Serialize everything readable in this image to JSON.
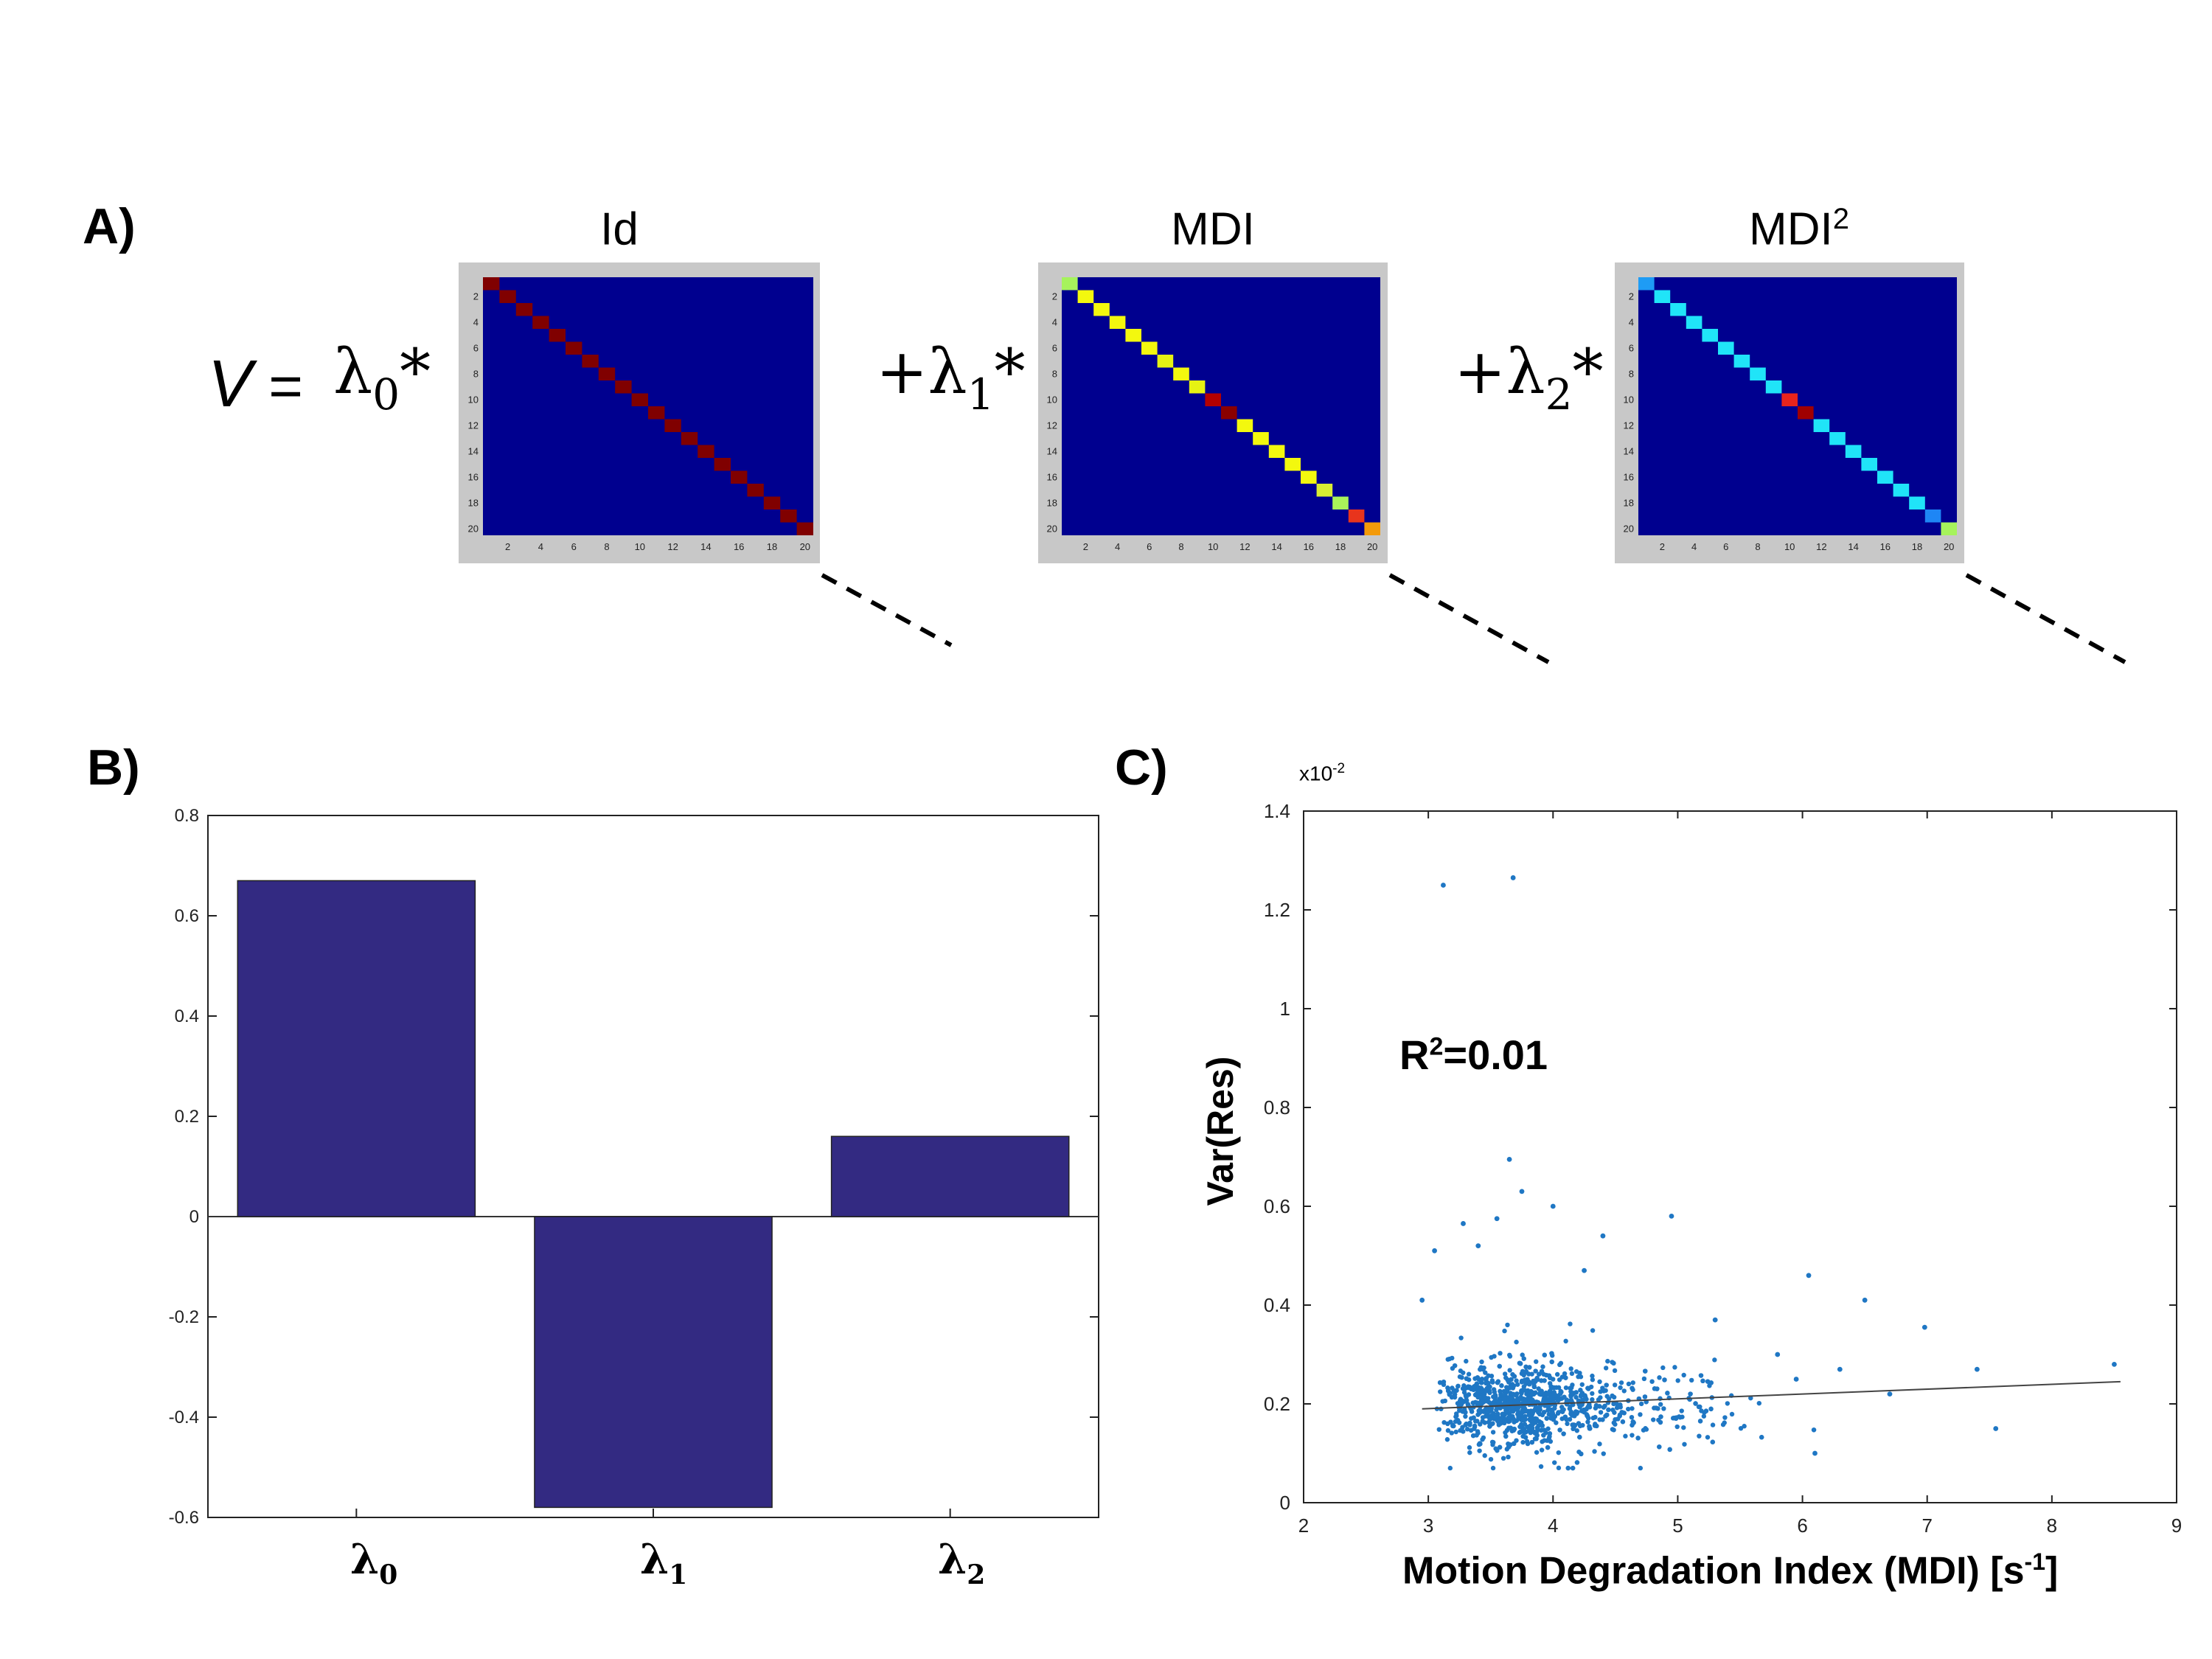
{
  "panels": {
    "a": "A)",
    "b": "B)",
    "c": "C)"
  },
  "equation": {
    "lhs": "V",
    "equals": "=",
    "term0": {
      "prefix": "",
      "symbol": "λ",
      "sub": "0",
      "op": "*"
    },
    "term1": {
      "prefix": "+",
      "symbol": "λ",
      "sub": "1",
      "op": "*"
    },
    "term2": {
      "prefix": "+",
      "symbol": "λ",
      "sub": "2",
      "op": "*"
    }
  },
  "matrices": [
    {
      "title": "Id",
      "title_sup": "",
      "diagonal_colors": [
        "#800000",
        "#800000",
        "#800000",
        "#800000",
        "#800000",
        "#800000",
        "#800000",
        "#800000",
        "#800000",
        "#800000",
        "#800000",
        "#800000",
        "#800000",
        "#800000",
        "#800000",
        "#800000",
        "#800000",
        "#800000",
        "#800000",
        "#800000"
      ]
    },
    {
      "title": "MDI",
      "title_sup": "",
      "diagonal_colors": [
        "#a6f35c",
        "#f3f80e",
        "#f3f80e",
        "#f3f80e",
        "#f3f80e",
        "#f3f80e",
        "#e6f213",
        "#f3f80e",
        "#e6f213",
        "#b40000",
        "#8a0000",
        "#f3f80e",
        "#f3f80e",
        "#f3f80e",
        "#f3f80e",
        "#f3f80e",
        "#d9ee33",
        "#a9f35a",
        "#e8341c",
        "#f39a0a"
      ]
    },
    {
      "title": "MDI",
      "title_sup": "2",
      "diagonal_colors": [
        "#1e9cf5",
        "#20e4f8",
        "#20e4f8",
        "#20e4f8",
        "#20e4f8",
        "#20e4f8",
        "#20e4f8",
        "#20e4f8",
        "#20e4f8",
        "#e8241c",
        "#a00000",
        "#20e4f8",
        "#20e4f8",
        "#20e4f8",
        "#20e4f8",
        "#20e4f8",
        "#20e4f8",
        "#20e4f8",
        "#1e86f5",
        "#a6f35c"
      ]
    }
  ],
  "matrix_ticks": [
    "2",
    "4",
    "6",
    "8",
    "10",
    "12",
    "14",
    "16",
    "18",
    "20"
  ],
  "chart_data": [
    {
      "type": "bar",
      "categories": [
        "λ0",
        "λ1",
        "λ2"
      ],
      "category_labels": [
        {
          "symbol": "λ",
          "sub": "0"
        },
        {
          "symbol": "λ",
          "sub": "1"
        },
        {
          "symbol": "λ",
          "sub": "2"
        }
      ],
      "values": [
        0.67,
        -0.58,
        0.16
      ],
      "ylim": [
        -0.6,
        0.8
      ],
      "yticks": [
        "-0.6",
        "-0.4",
        "-0.2",
        "0",
        "0.2",
        "0.4",
        "0.6",
        "0.8"
      ],
      "color": "#332a82",
      "title": "",
      "xlabel": "",
      "ylabel": ""
    },
    {
      "type": "scatter",
      "xlabel": "Motion Degradation Index (MDI) [s",
      "xlabel_sup": "-1",
      "xlabel_end": "]",
      "ylabel": "Var(Res)",
      "y_exponent": {
        "base": "x10",
        "power": "-2"
      },
      "annotation": {
        "text": "R",
        "sup": "2",
        "rest": "=0.01"
      },
      "xlim": [
        2,
        9
      ],
      "ylim": [
        0,
        1.4
      ],
      "xticks": [
        "2",
        "3",
        "4",
        "5",
        "6",
        "7",
        "8",
        "9"
      ],
      "yticks": [
        "0",
        "0.2",
        "0.4",
        "0.6",
        "0.8",
        "1",
        "1.2",
        "1.4"
      ],
      "point_color": "#1f77c4",
      "fit_line": {
        "x": [
          2.95,
          8.55
        ],
        "y": [
          0.19,
          0.245
        ]
      },
      "cluster": {
        "n": 1200,
        "x_center": 3.6,
        "y_center": 0.2,
        "x_range": [
          2.9,
          8.6
        ]
      },
      "outliers": [
        [
          3.12,
          1.25
        ],
        [
          3.68,
          1.265
        ],
        [
          3.65,
          0.695
        ],
        [
          3.75,
          0.63
        ],
        [
          3.28,
          0.565
        ],
        [
          3.55,
          0.575
        ],
        [
          4.95,
          0.58
        ],
        [
          4.0,
          0.6
        ],
        [
          2.95,
          0.41
        ],
        [
          3.05,
          0.51
        ],
        [
          4.25,
          0.47
        ],
        [
          4.4,
          0.54
        ],
        [
          6.05,
          0.46
        ],
        [
          6.5,
          0.41
        ],
        [
          6.98,
          0.355
        ],
        [
          7.4,
          0.27
        ],
        [
          8.5,
          0.28
        ],
        [
          7.55,
          0.15
        ],
        [
          6.1,
          0.1
        ],
        [
          3.4,
          0.52
        ],
        [
          5.3,
          0.37
        ],
        [
          5.8,
          0.3
        ],
        [
          6.3,
          0.27
        ],
        [
          6.7,
          0.22
        ],
        [
          5.95,
          0.25
        ]
      ]
    }
  ]
}
